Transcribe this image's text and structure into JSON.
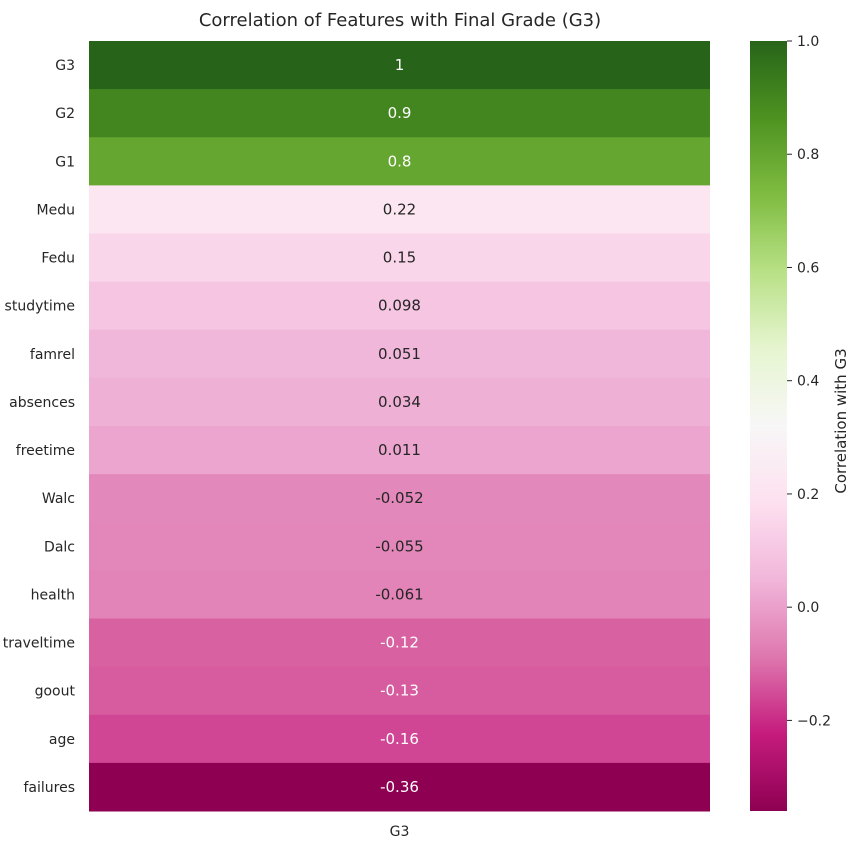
{
  "chart_data": {
    "type": "heatmap",
    "title": "Correlation of Features with Final Grade (G3)",
    "xlabel": "",
    "ylabel": "",
    "columns": [
      "G3"
    ],
    "rows": [
      "G3",
      "G2",
      "G1",
      "Medu",
      "Fedu",
      "studytime",
      "famrel",
      "absences",
      "freetime",
      "Walc",
      "Dalc",
      "health",
      "traveltime",
      "goout",
      "age",
      "failures"
    ],
    "values": [
      1.0,
      0.9,
      0.8,
      0.22,
      0.15,
      0.098,
      0.051,
      0.034,
      0.011,
      -0.052,
      -0.055,
      -0.061,
      -0.12,
      -0.13,
      -0.16,
      -0.36
    ],
    "annotations": [
      "1",
      "0.9",
      "0.8",
      "0.22",
      "0.15",
      "0.098",
      "0.051",
      "0.034",
      "0.011",
      "-0.052",
      "-0.055",
      "-0.061",
      "-0.12",
      "-0.13",
      "-0.16",
      "-0.36"
    ],
    "colorbar": {
      "label": "Correlation with G3",
      "range": [
        -0.36,
        1.0
      ],
      "ticks": [
        "1.0",
        "0.8",
        "0.6",
        "0.4",
        "0.2",
        "0.0",
        "−0.2"
      ],
      "tick_values": [
        1.0,
        0.8,
        0.6,
        0.4,
        0.2,
        0.0,
        -0.2
      ],
      "colormap": "PiYG",
      "center": 0.32
    },
    "grid": false,
    "legend": "colorbar-right"
  },
  "colors": {
    "colormap_stops": [
      "#8e0152",
      "#c51b7d",
      "#de77ae",
      "#f1b6da",
      "#fde0ef",
      "#f7f7f7",
      "#e6f5d0",
      "#b8e186",
      "#7fbc41",
      "#4d9221",
      "#276419"
    ],
    "text_dark": "#262626",
    "text_light": "#ffffff"
  }
}
